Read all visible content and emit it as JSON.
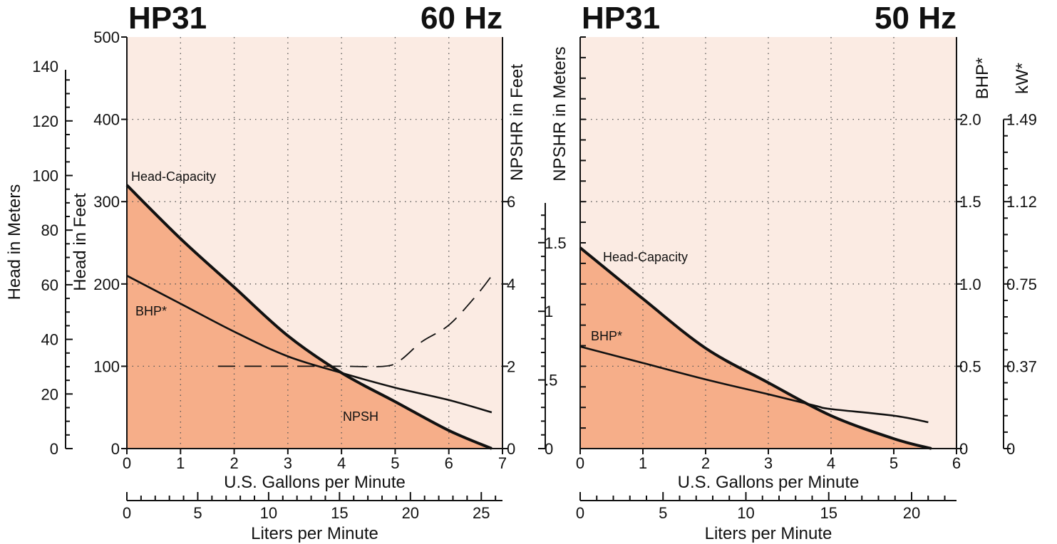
{
  "chart_data": [
    {
      "type": "line",
      "title_left": "HP31",
      "title_right": "60 Hz",
      "xlabel": "U.S. Gallons per Minute",
      "x2label": "Liters per Minute",
      "ylabel_feet": "Head in Feet",
      "ylabel_meters": "Head in Meters",
      "ylabel_npsh": "NPSHR in Feet",
      "xlim": [
        0,
        7
      ],
      "ylim_feet": [
        0,
        500
      ],
      "ylim_npsh": [
        0,
        10
      ],
      "x_ticks": [
        "0",
        "1",
        "2",
        "3",
        "4",
        "5",
        "6",
        "7"
      ],
      "x2_ticks": [
        "0",
        "5",
        "10",
        "15",
        "20",
        "25"
      ],
      "y_feet_ticks": [
        "0",
        "100",
        "200",
        "300",
        "400",
        "500"
      ],
      "y_meters_ticks": [
        "0",
        "20",
        "40",
        "60",
        "80",
        "100",
        "120",
        "140"
      ],
      "y_npsh_ticks": [
        "0",
        "2",
        "4",
        "6"
      ],
      "labels": {
        "head": "Head-Capacity",
        "bhp": "BHP*",
        "npsh": "NPSH"
      },
      "series": [
        {
          "name": "Head-Capacity",
          "x": [
            0,
            1,
            2,
            3,
            4,
            5,
            6,
            6.8
          ],
          "y": [
            320,
            255,
            196,
            137,
            92,
            57,
            22,
            0
          ]
        },
        {
          "name": "BHP*",
          "x": [
            0,
            1,
            2,
            3,
            4,
            5,
            6,
            6.8
          ],
          "y": [
            210,
            176,
            142,
            112,
            92,
            74,
            59,
            44
          ]
        },
        {
          "name": "NPSH",
          "x": [
            1.7,
            3,
            4,
            4.8,
            5.1,
            5.5,
            6,
            6.5,
            6.8
          ],
          "y": [
            2.0,
            2.0,
            2.0,
            2.0,
            2.15,
            2.6,
            3.0,
            3.7,
            4.2
          ]
        }
      ]
    },
    {
      "type": "line",
      "title_left": "HP31",
      "title_right": "50 Hz",
      "xlabel": "U.S. Gallons per Minute",
      "x2label": "Liters per Minute",
      "ylabel_npsh": "NPSHR in Meters",
      "ylabel_bhp": "BHP*",
      "ylabel_kw": "kW*",
      "xlim": [
        0,
        6
      ],
      "ylim_bhp": [
        0,
        2.5
      ],
      "x_ticks": [
        "0",
        "1",
        "2",
        "3",
        "4",
        "5",
        "6"
      ],
      "x2_ticks": [
        "0",
        "5",
        "10",
        "15",
        "20"
      ],
      "y_npsh_ticks": [
        "0",
        ".5",
        "1",
        "1.5"
      ],
      "y_bhp_ticks": [
        "0",
        "0.5",
        "1.0",
        "1.5",
        "2.0"
      ],
      "y_kw_ticks": [
        "0",
        "0.37",
        "0.75",
        "1.12",
        "1.49"
      ],
      "labels": {
        "head": "Head-Capacity",
        "bhp": "BHP*"
      },
      "series": [
        {
          "name": "Head-Capacity",
          "x": [
            0,
            1,
            2,
            3,
            4,
            5,
            5.6
          ],
          "y": [
            1.22,
            0.91,
            0.61,
            0.4,
            0.2,
            0.06,
            0
          ]
        },
        {
          "name": "BHP*",
          "x": [
            0,
            1,
            2,
            3,
            3.75,
            4,
            5,
            5.55
          ],
          "y": [
            0.62,
            0.52,
            0.42,
            0.33,
            0.26,
            0.24,
            0.2,
            0.16
          ]
        }
      ]
    }
  ]
}
